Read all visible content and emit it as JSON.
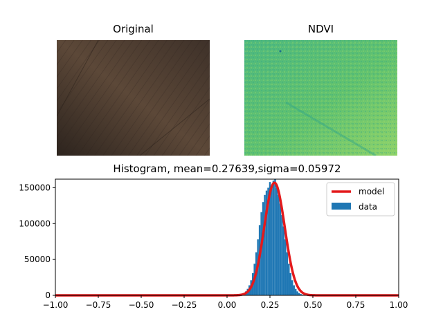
{
  "titles": {
    "original": "Original",
    "ndvi": "NDVI"
  },
  "colors": {
    "data": "#1f77b4",
    "model": "#e31a1c",
    "original_dark": "#3a2e26",
    "original_mid": "#5c4838",
    "ndvi_base": "#5bbf73",
    "ndvi_light": "#8fd26a",
    "ndvi_dark": "#2fa58a"
  },
  "chart_data": {
    "type": "bar",
    "title": "Histogram, mean=0.27639,sigma=0.05972",
    "mean": 0.27639,
    "sigma": 0.05972,
    "xlim": [
      -1.0,
      1.0
    ],
    "ylim": [
      0,
      162000
    ],
    "xticks": [
      -1.0,
      -0.75,
      -0.5,
      -0.25,
      0.0,
      0.25,
      0.5,
      0.75,
      1.0
    ],
    "xtick_labels": [
      "−1.00",
      "−0.75",
      "−0.50",
      "−0.25",
      "0.00",
      "0.25",
      "0.50",
      "0.75",
      "1.00"
    ],
    "yticks": [
      0,
      50000,
      100000,
      150000
    ],
    "ytick_labels": [
      "0",
      "50000",
      "100000",
      "150000"
    ],
    "bin_width": 0.01,
    "bins": {
      "x": [
        0.07,
        0.08,
        0.09,
        0.1,
        0.11,
        0.12,
        0.13,
        0.14,
        0.15,
        0.16,
        0.17,
        0.18,
        0.19,
        0.2,
        0.21,
        0.22,
        0.23,
        0.24,
        0.25,
        0.26,
        0.27,
        0.28,
        0.29,
        0.3,
        0.31,
        0.32,
        0.33,
        0.34,
        0.35,
        0.36,
        0.37,
        0.38,
        0.39,
        0.4,
        0.41,
        0.42,
        0.43,
        0.44,
        0.45,
        0.46,
        0.47
      ],
      "values": [
        400,
        900,
        1800,
        3200,
        5500,
        9000,
        14000,
        21000,
        31000,
        44000,
        60000,
        78000,
        98000,
        116000,
        130000,
        140000,
        146000,
        150000,
        158000,
        152000,
        160000,
        165000,
        150000,
        140000,
        128000,
        112000,
        96000,
        78000,
        60000,
        44000,
        31000,
        21000,
        14000,
        9000,
        5500,
        3200,
        1800,
        900,
        400,
        200,
        100
      ]
    },
    "model": {
      "peak": 157000,
      "mean": 0.27639,
      "sigma": 0.05972
    },
    "legend": {
      "position": "upper-right",
      "entries": [
        {
          "label": "model",
          "kind": "line"
        },
        {
          "label": "data",
          "kind": "patch"
        }
      ]
    }
  }
}
